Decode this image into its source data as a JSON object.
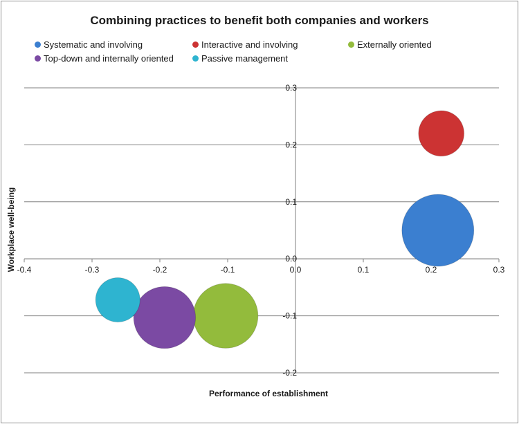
{
  "chart_data": {
    "type": "bubble",
    "title": "Combining practices to benefit both companies  and workers",
    "xlabel": "Performance of establishment",
    "ylabel": "Workplace well-being",
    "xlim": [
      -0.4,
      0.3
    ],
    "ylim": [
      -0.2,
      0.3
    ],
    "x_ticks": [
      -0.4,
      -0.3,
      -0.2,
      -0.1,
      0.0,
      0.1,
      0.2,
      0.3
    ],
    "x_tick_labels": [
      "-0.4",
      "-0.3",
      "-0.2",
      "-0.1",
      "0.0",
      "0.1",
      "0.2",
      "0.3"
    ],
    "y_ticks": [
      -0.2,
      -0.1,
      0.0,
      0.1,
      0.2,
      0.3
    ],
    "y_tick_labels": [
      "-0.2",
      "-0.1",
      "0.0",
      "0.1",
      "0.2",
      "0.3"
    ],
    "grid": true,
    "legend_position": "top",
    "series": [
      {
        "name": "Systematic and involving",
        "color": "#3b7fd0",
        "x": 0.21,
        "y": 0.05,
        "size": 1.0
      },
      {
        "name": "Interactive and involving",
        "color": "#cc3333",
        "x": 0.215,
        "y": 0.22,
        "size": 0.4
      },
      {
        "name": "Externally oriented",
        "color": "#93bb3c",
        "x": -0.103,
        "y": -0.1,
        "size": 0.81
      },
      {
        "name": "Top-down and internally oriented",
        "color": "#7b4aa3",
        "x": -0.193,
        "y": -0.103,
        "size": 0.74
      },
      {
        "name": "Passive management",
        "color": "#2eb4d0",
        "x": -0.262,
        "y": -0.072,
        "size": 0.38
      }
    ]
  }
}
